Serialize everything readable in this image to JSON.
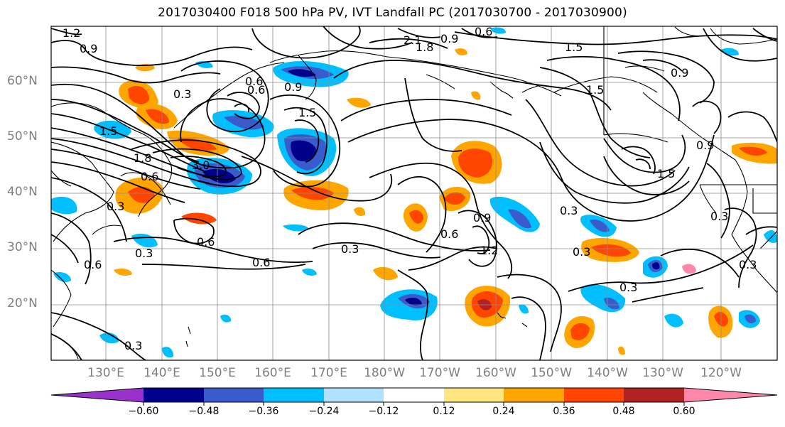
{
  "title": "2017030400 F018 500 hPa PV, IVT Landfall PC (2017030700 - 2017030900)",
  "lat_labels": [
    "60°N",
    "50°N",
    "40°N",
    "30°N",
    "20°N"
  ],
  "lon_labels": [
    "130°E",
    "140°E",
    "150°E",
    "160°E",
    "170°E",
    "180°W",
    "170°W",
    "160°W",
    "150°W",
    "140°W",
    "130°W",
    "120°W"
  ],
  "colorbar": {
    "colors": [
      "#9932cc",
      "#00008b",
      "#3a5bcc",
      "#00bfff",
      "#b0e2ff",
      "#ffffff",
      "#ffe680",
      "#ffa500",
      "#ff4500",
      "#b22222",
      "#ff88aa"
    ],
    "tick_labels": [
      "−0.60",
      "−0.48",
      "−0.36",
      "−0.24",
      "−0.12",
      "0.12",
      "0.24",
      "0.36",
      "0.48",
      "0.60"
    ],
    "extend": "both"
  },
  "contour_labels": [
    "1.2",
    "0.9",
    "0.3",
    "0.6",
    "1.5",
    "3.0",
    "1.8",
    "0.6",
    "0.3",
    "0.6",
    "0.6",
    "0.3",
    "0.3",
    "0.6",
    "0.9",
    "1.2",
    "0.3",
    "0.3",
    "0.3",
    "1.5",
    "0.9",
    "0.6",
    "0.9",
    "1.5",
    "1.8",
    "0.3",
    "0.3",
    "2.1",
    "0.6",
    "0.9",
    "1.5",
    "0.3",
    "0.6",
    "0.9",
    "1.5"
  ]
}
